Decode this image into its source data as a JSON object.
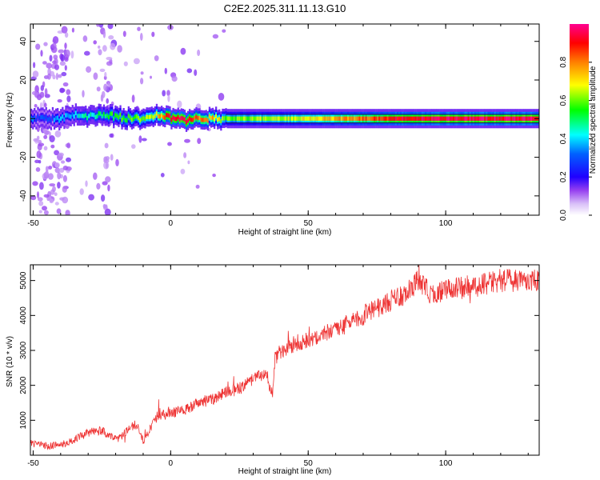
{
  "title": "C2E2.2025.311.11.13.G10",
  "chart_data": [
    {
      "type": "heatmap",
      "title": "C2E2.2025.311.11.13.G10",
      "xlabel": "Height of straight line (km)",
      "ylabel": "Frequency (Hz)",
      "xlim": [
        -51,
        134
      ],
      "ylim": [
        -50,
        49
      ],
      "xticks": [
        -50,
        0,
        50,
        100
      ],
      "yticks": [
        -40,
        -20,
        0,
        20,
        40
      ],
      "xtick_labels": [
        "-50",
        "0",
        "50",
        "100"
      ],
      "ytick_labels": [
        "-40",
        "-20",
        "0",
        "20",
        "40"
      ],
      "colorbar": {
        "label": "Normalized spectral amplitude",
        "range": [
          0,
          1
        ],
        "ticks": [
          0.0,
          0.2,
          0.4,
          0.6,
          0.8
        ],
        "tick_labels": [
          "0.0",
          "0.2",
          "0.4",
          "0.6",
          "0.8"
        ],
        "colors": [
          "#ffffff",
          "#b57cf0",
          "#6a00ff",
          "#0000ff",
          "#00ffff",
          "#00ff00",
          "#ffff00",
          "#ff8000",
          "#ff0000",
          "#ff00a0"
        ]
      },
      "ridge": {
        "description_units": "frequency in Hz at each height (km)",
        "x": [
          -50,
          -40,
          -35,
          -30,
          -25,
          -20,
          -15,
          -10,
          -5,
          0,
          5,
          10,
          15,
          20,
          40,
          60,
          80,
          100,
          120,
          134
        ],
        "freq": [
          0,
          0,
          2,
          1,
          2,
          1,
          0,
          0,
          2,
          0,
          -1,
          0,
          0,
          0,
          0,
          0,
          0,
          0,
          0,
          0
        ],
        "amplitude": [
          0.3,
          0.35,
          0.4,
          0.45,
          0.5,
          0.55,
          0.6,
          0.6,
          0.7,
          0.95,
          0.95,
          0.8,
          0.75,
          0.6,
          0.65,
          0.75,
          0.9,
          0.95,
          0.95,
          0.95
        ]
      }
    },
    {
      "type": "line",
      "xlabel": "Height of straight line (km)",
      "ylabel": "SNR (10 * v/v)",
      "xlim": [
        -51,
        134
      ],
      "ylim": [
        0,
        5450
      ],
      "xticks": [
        -50,
        0,
        50,
        100
      ],
      "yticks": [
        1000,
        2000,
        3000,
        4000,
        5000
      ],
      "xtick_labels": [
        "-50",
        "0",
        "50",
        "100"
      ],
      "ytick_labels": [
        "1000",
        "2000",
        "3000",
        "4000",
        "5000"
      ],
      "color": "#ee3333",
      "series": [
        {
          "name": "SNR",
          "x": [
            -51,
            -45,
            -40,
            -35,
            -30,
            -25,
            -20,
            -18,
            -15,
            -12,
            -10,
            -5,
            0,
            5,
            10,
            15,
            20,
            25,
            30,
            35,
            37,
            38,
            40,
            45,
            50,
            55,
            60,
            65,
            70,
            75,
            80,
            85,
            88,
            90,
            92,
            95,
            100,
            105,
            110,
            115,
            120,
            125,
            130,
            134
          ],
          "y": [
            350,
            250,
            300,
            450,
            650,
            700,
            450,
            500,
            800,
            900,
            400,
            1100,
            1200,
            1300,
            1500,
            1600,
            1800,
            1900,
            2200,
            2300,
            1700,
            2800,
            3000,
            3200,
            3300,
            3500,
            3600,
            3800,
            4000,
            4200,
            4400,
            4600,
            4800,
            5000,
            4800,
            4600,
            4700,
            4800,
            4800,
            4900,
            5000,
            5000,
            5000,
            5000
          ]
        }
      ]
    }
  ]
}
